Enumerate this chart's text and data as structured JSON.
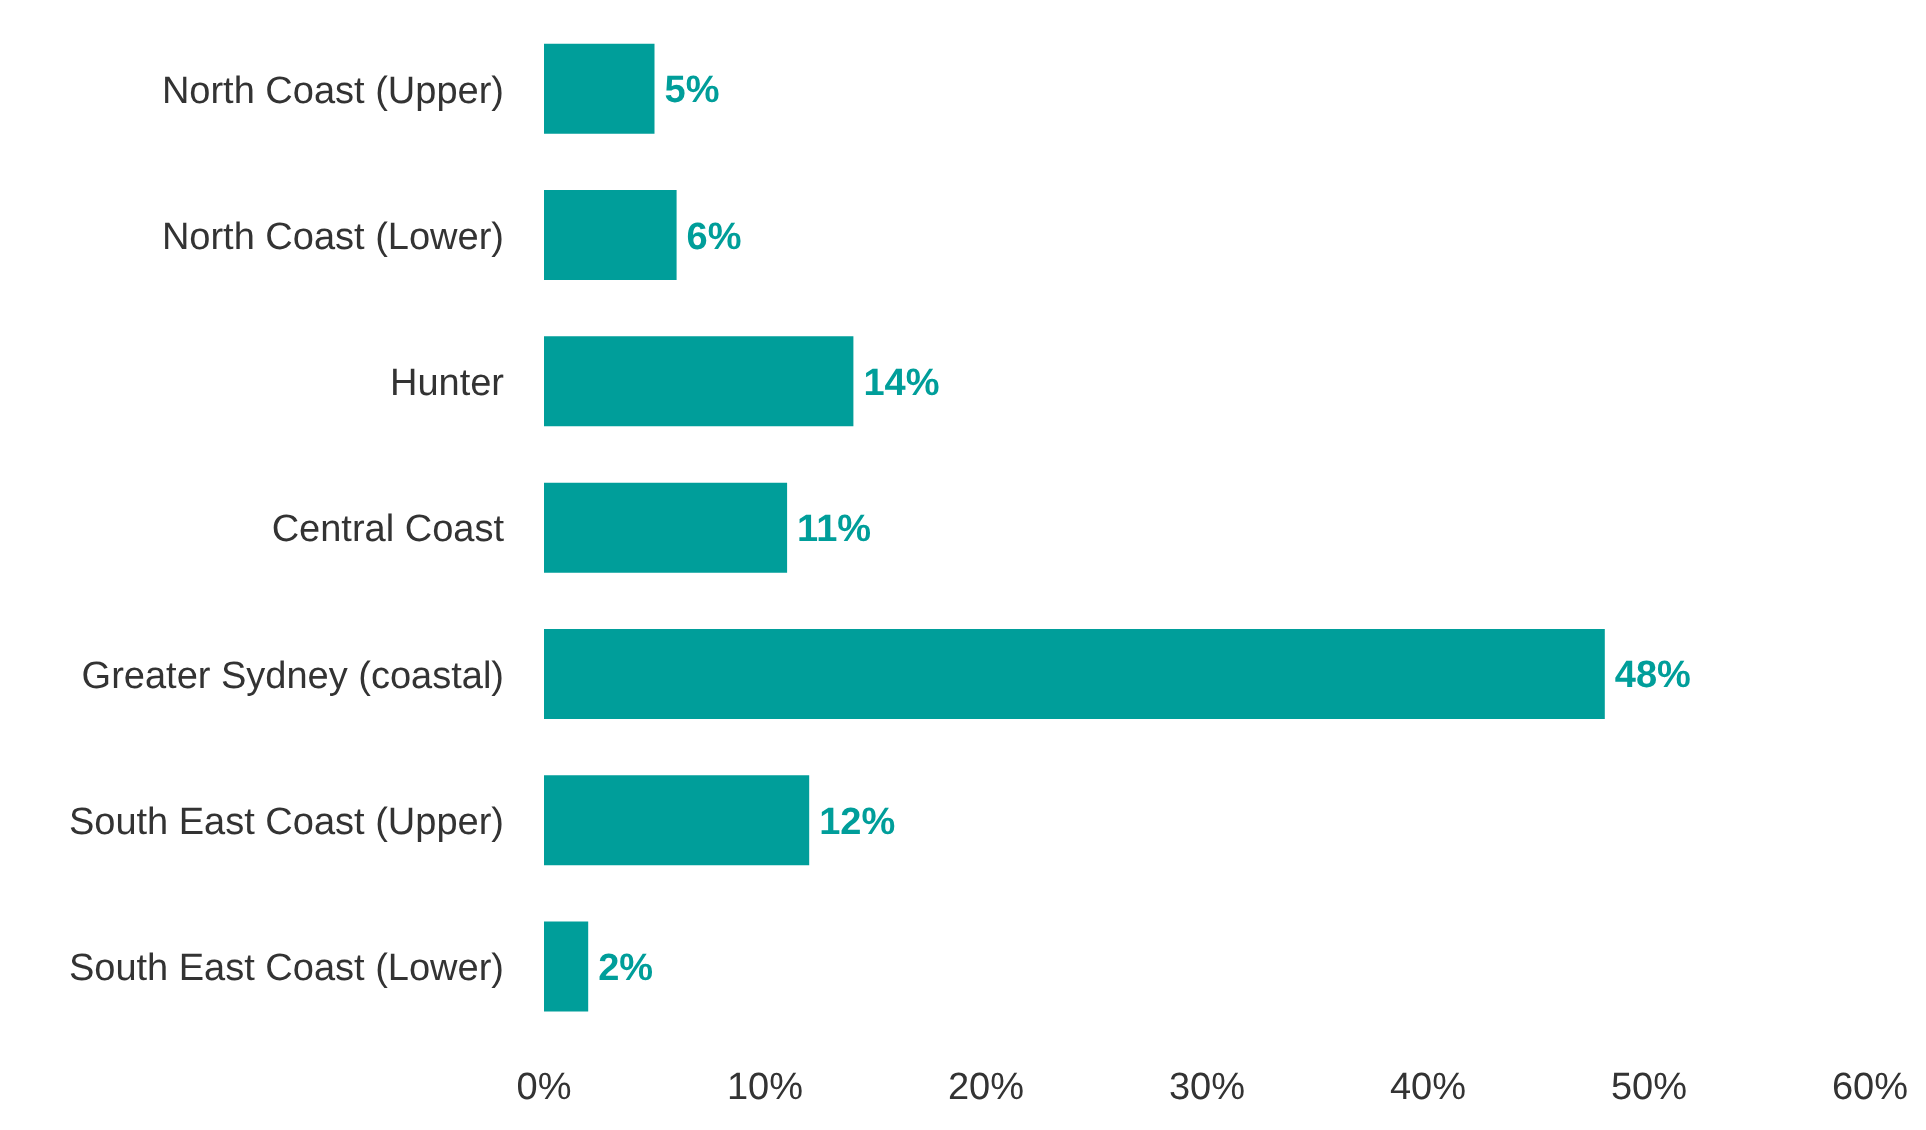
{
  "chart_data": {
    "type": "bar",
    "orientation": "horizontal",
    "categories": [
      "North Coast (Upper)",
      "North Coast (Lower)",
      "Hunter",
      "Central Coast",
      "Greater Sydney (coastal)",
      "South East Coast (Upper)",
      "South East Coast (Lower)"
    ],
    "values": [
      5,
      6,
      14,
      11,
      48,
      12,
      2
    ],
    "value_labels": [
      "5%",
      "6%",
      "14%",
      "11%",
      "48%",
      "12%",
      "2%"
    ],
    "color": "#009e9a",
    "xlim": [
      0,
      60
    ],
    "xticks": [
      {
        "value": 0,
        "label": "0%"
      },
      {
        "value": 10,
        "label": "10%"
      },
      {
        "value": 20,
        "label": "20%"
      },
      {
        "value": 30,
        "label": "30%"
      },
      {
        "value": 40,
        "label": "40%"
      },
      {
        "value": 50,
        "label": "50%"
      },
      {
        "value": 60,
        "label": "60%"
      }
    ]
  }
}
